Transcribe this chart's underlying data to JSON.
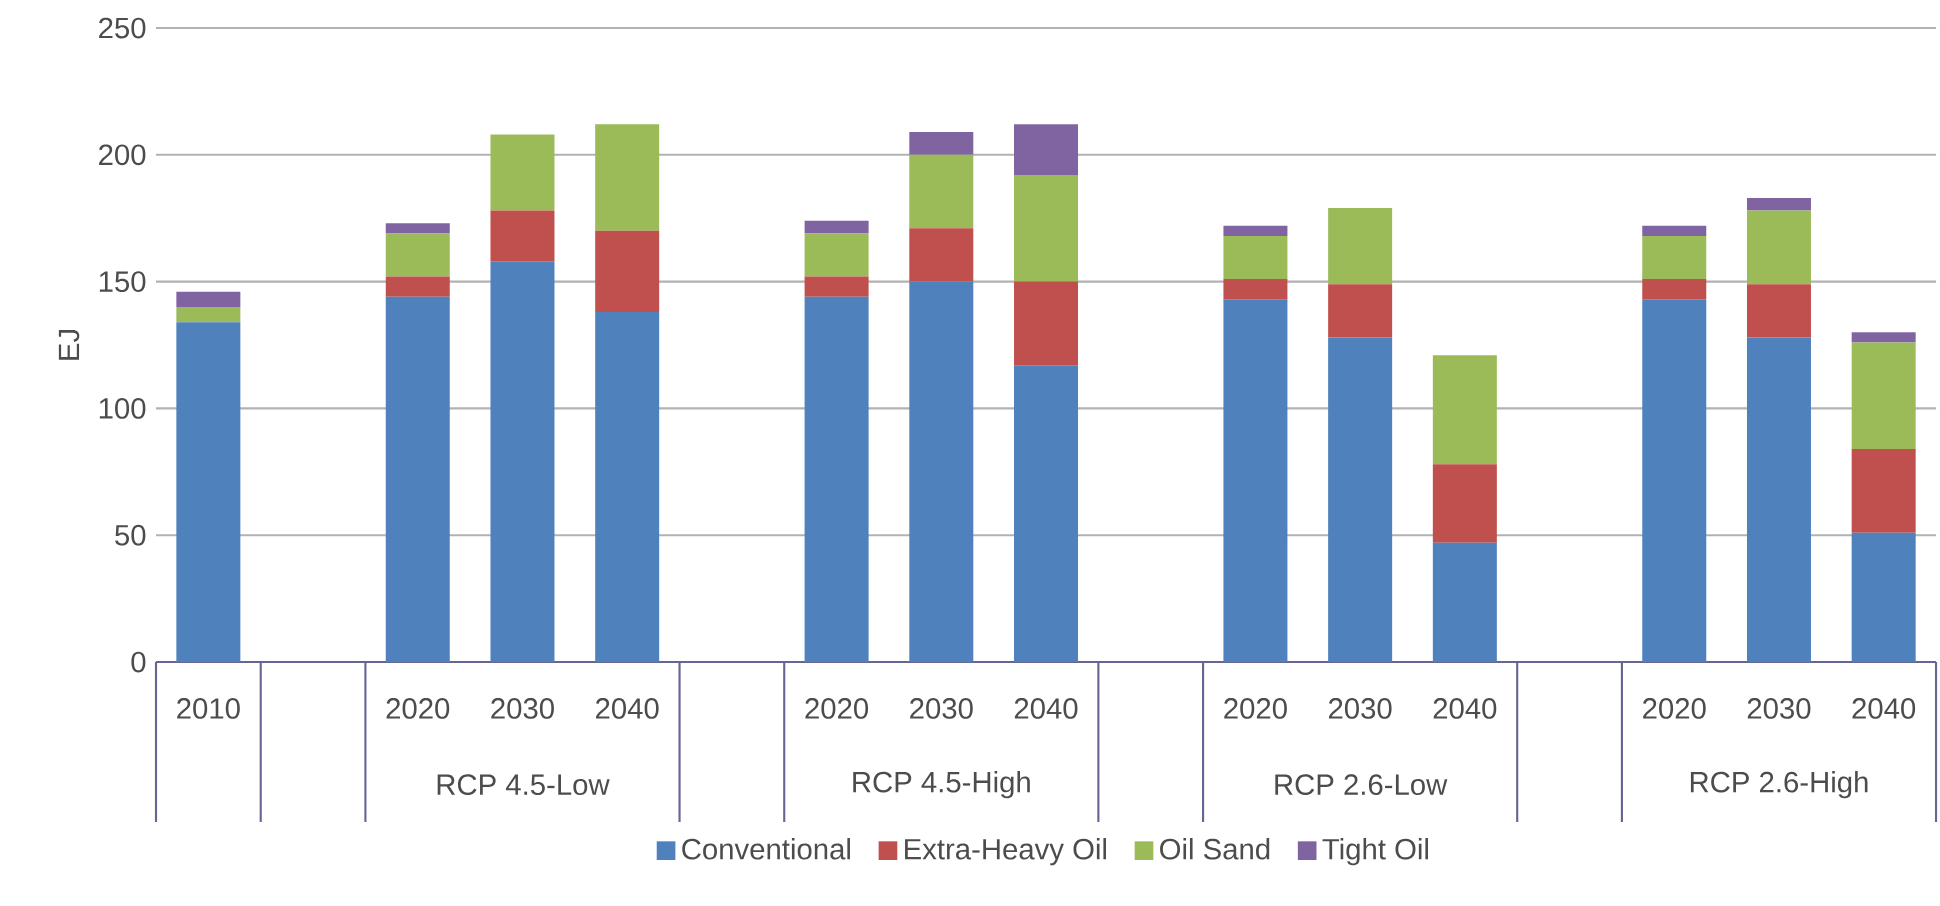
{
  "chart_data": {
    "type": "bar",
    "stacked": true,
    "ylabel": "EJ",
    "categories": [
      "2010",
      null,
      "2020",
      "2030",
      "2040",
      null,
      "2020",
      "2030",
      "2040",
      null,
      "2020",
      "2030",
      "2040",
      null,
      "2020",
      "2030",
      "2040"
    ],
    "annotations": [
      "RCP 4.5-Low",
      "RCP 4.5-High",
      "RCP 2.6-Low",
      "RCP 2.6-High"
    ],
    "series": [
      {
        "name": "Conventional",
        "color": "#4f81bd",
        "values": [
          134,
          null,
          144,
          158,
          138,
          null,
          144,
          150,
          117,
          null,
          143,
          128,
          47,
          null,
          143,
          128,
          51
        ]
      },
      {
        "name": "Extra-Heavy Oil",
        "color": "#c0504d",
        "values": [
          0,
          null,
          8,
          20,
          32,
          null,
          8,
          21,
          33,
          null,
          8,
          21,
          31,
          null,
          8,
          21,
          33
        ]
      },
      {
        "name": "Oil Sand",
        "color": "#9bbb59",
        "values": [
          6,
          null,
          17,
          30,
          42,
          null,
          17,
          29,
          42,
          null,
          17,
          30,
          43,
          null,
          17,
          29,
          42
        ]
      },
      {
        "name": "Tight Oil",
        "color": "#8064a2",
        "values": [
          6,
          null,
          4,
          0,
          0,
          null,
          5,
          9,
          20,
          null,
          4,
          0,
          0,
          null,
          4,
          5,
          4
        ]
      }
    ],
    "ylim": [
      0,
      250
    ],
    "yticks": [
      0,
      50,
      100,
      150,
      200,
      250
    ],
    "grid": "y",
    "legend": "bottom"
  }
}
